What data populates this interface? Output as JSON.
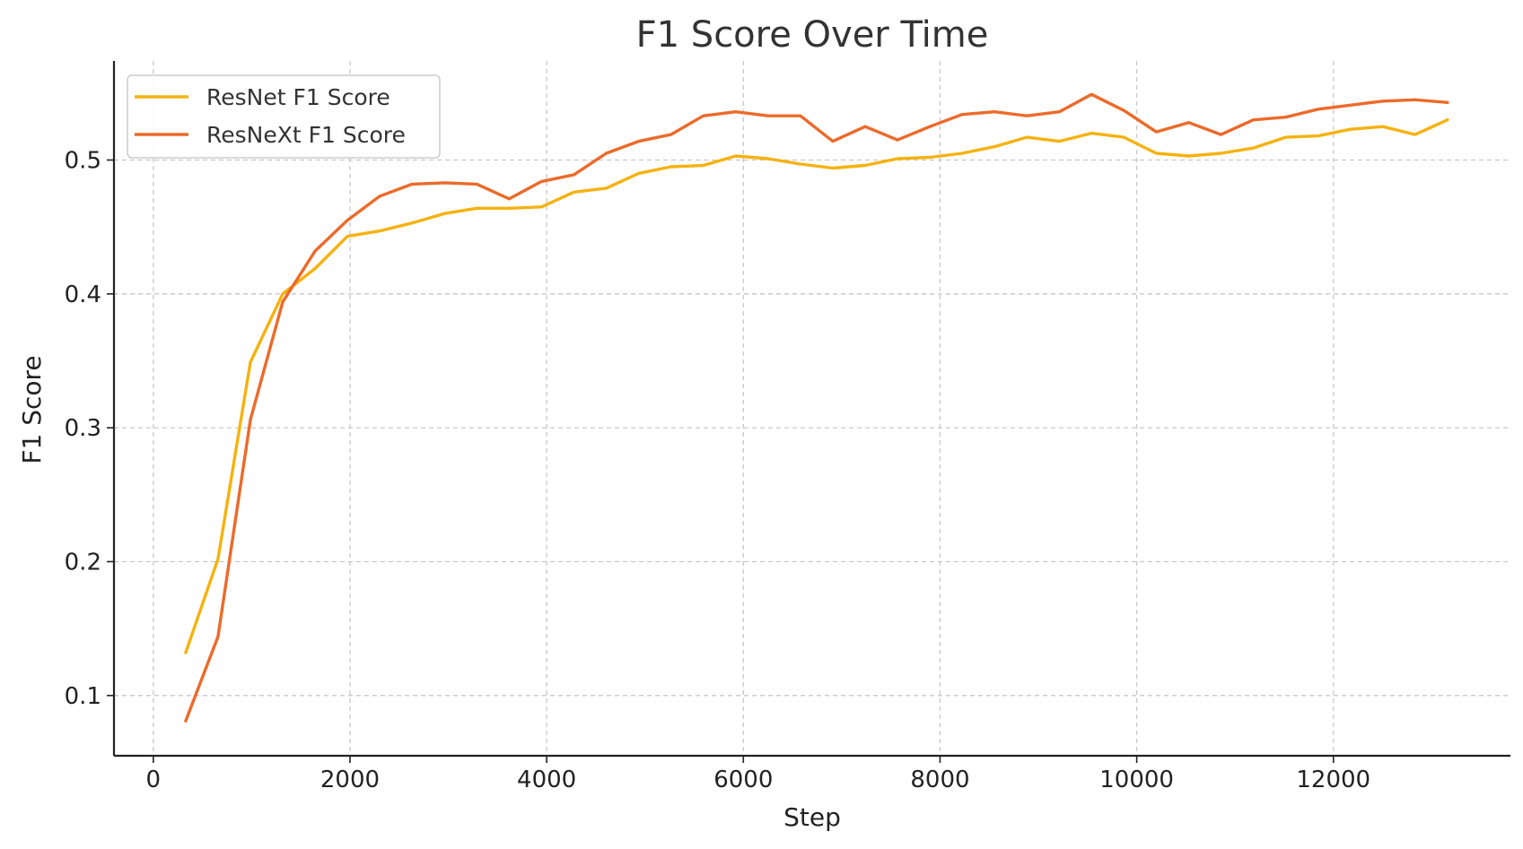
{
  "chart_data": {
    "type": "line",
    "title": "F1 Score Over Time",
    "xlabel": "Step",
    "ylabel": "F1 Score",
    "xlim": [
      -400,
      13800
    ],
    "ylim": [
      0.055,
      0.574
    ],
    "xticks": [
      0,
      2000,
      4000,
      6000,
      8000,
      10000,
      12000
    ],
    "xtick_labels": [
      "0",
      "2000",
      "4000",
      "6000",
      "8000",
      "10000",
      "12000"
    ],
    "yticks": [
      0.1,
      0.2,
      0.3,
      0.4,
      0.5
    ],
    "ytick_labels": [
      "0.1",
      "0.2",
      "0.3",
      "0.4",
      "0.5"
    ],
    "grid": true,
    "legend_position": "top-left",
    "x": [
      329,
      658,
      987,
      1316,
      1645,
      1974,
      2303,
      2632,
      2961,
      3290,
      3619,
      3948,
      4277,
      4606,
      4935,
      5264,
      5593,
      5922,
      6251,
      6580,
      6909,
      7238,
      7567,
      7896,
      8225,
      8554,
      8883,
      9212,
      9541,
      9870,
      10199,
      10528,
      10857,
      11186,
      11515,
      11844,
      12173,
      12502,
      12831,
      13160
    ],
    "series": [
      {
        "name": "ResNet F1 Score",
        "color": "#f5b20f",
        "values": [
          0.132,
          0.202,
          0.349,
          0.4,
          0.419,
          0.443,
          0.447,
          0.453,
          0.46,
          0.464,
          0.464,
          0.465,
          0.476,
          0.479,
          0.49,
          0.495,
          0.496,
          0.503,
          0.501,
          0.497,
          0.494,
          0.496,
          0.501,
          0.502,
          0.505,
          0.51,
          0.517,
          0.514,
          0.52,
          0.517,
          0.505,
          0.503,
          0.505,
          0.509,
          0.517,
          0.518,
          0.523,
          0.525,
          0.519,
          0.53
        ]
      },
      {
        "name": "ResNeXt F1 Score",
        "color": "#ec6a2a",
        "values": [
          0.081,
          0.144,
          0.306,
          0.394,
          0.432,
          0.455,
          0.473,
          0.482,
          0.483,
          0.482,
          0.471,
          0.484,
          0.489,
          0.505,
          0.514,
          0.519,
          0.533,
          0.536,
          0.533,
          0.533,
          0.514,
          0.525,
          0.515,
          0.525,
          0.534,
          0.536,
          0.533,
          0.536,
          0.549,
          0.537,
          0.521,
          0.528,
          0.519,
          0.53,
          0.532,
          0.538,
          0.541,
          0.544,
          0.545,
          0.543
        ]
      }
    ]
  }
}
